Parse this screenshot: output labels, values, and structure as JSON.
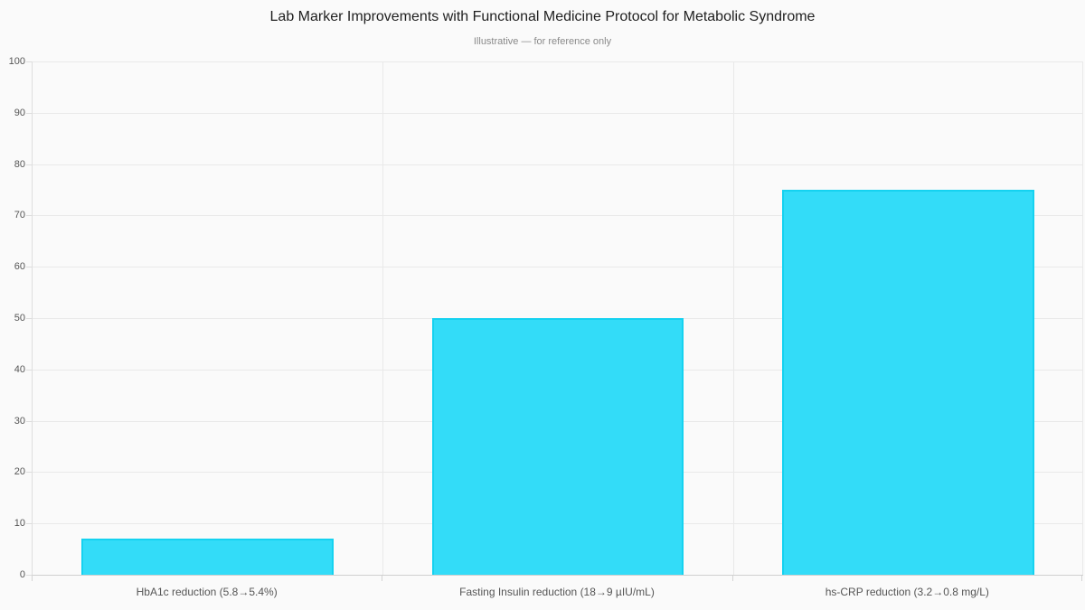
{
  "chart_data": {
    "type": "bar",
    "title": "Lab Marker Improvements with Functional Medicine Protocol for Metabolic Syndrome",
    "subtitle": "Illustrative — for reference only",
    "categories": [
      "HbA1c reduction (5.8→5.4%)",
      "Fasting Insulin reduction (18→9 µIU/mL)",
      "hs-CRP reduction (3.2→0.8 mg/L)"
    ],
    "values": [
      7,
      50,
      75
    ],
    "xlabel": "",
    "ylabel": "",
    "ylim": [
      0,
      100
    ],
    "ytick_step": 10,
    "grid": true,
    "legend": false,
    "colors": {
      "bar_fill": "#33dcf8",
      "bar_border": "#15d2f0",
      "background": "#fafafa",
      "grid": "#e9e9e9",
      "axis": "#cfcfcf",
      "title_text": "#1f1f1f",
      "subtitle_text": "#8a8a8a",
      "tick_text": "#555555"
    }
  }
}
